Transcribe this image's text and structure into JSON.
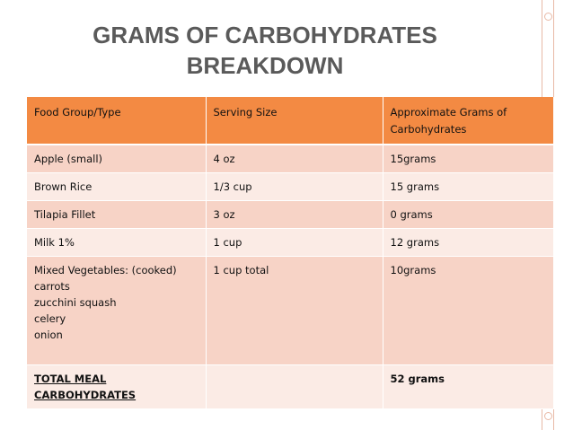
{
  "title": {
    "line1": "GRAMS OF CARBOHYDRATES",
    "line2": "BREAKDOWN"
  },
  "table": {
    "headers": [
      "Food Group/Type",
      "Serving Size",
      "Approximate Grams of Carbohydrates"
    ],
    "rows": [
      [
        "Apple (small)",
        "4 oz",
        "15grams"
      ],
      [
        "Brown Rice",
        "1/3 cup",
        "15 grams"
      ],
      [
        "Tilapia Fillet",
        "3 oz",
        "0 grams"
      ],
      [
        "Milk 1%",
        "1 cup",
        "12 grams"
      ],
      [
        "Mixed Vegetables: (cooked)\ncarrots\nzucchini squash\ncelery\nonion",
        "1 cup total",
        "10grams"
      ]
    ],
    "total": {
      "label": "TOTAL MEAL CARBOHYDRATES",
      "serving": "",
      "grams": "52 grams"
    }
  },
  "colors": {
    "header": "#f38a43",
    "row_dark": "#f7d3c6",
    "row_light": "#fbebe5",
    "title": "#5a5a5a"
  }
}
